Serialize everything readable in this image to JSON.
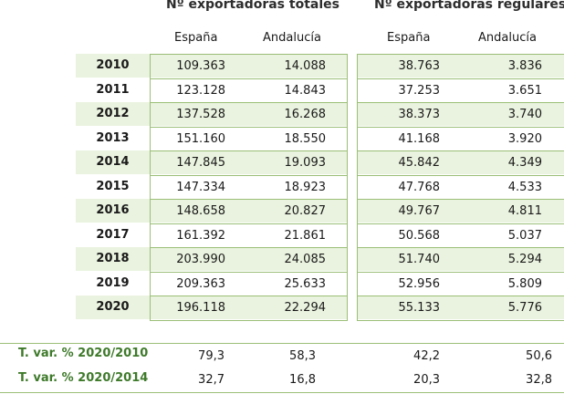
{
  "headers": {
    "totales": "Nº exportadoras totales",
    "regulares": "Nº exportadoras regulares",
    "sub_es_1": "España",
    "sub_an_1": "Andalucía",
    "sub_es_2": "España",
    "sub_an_2": "Andalucía"
  },
  "rows": [
    {
      "year": "2010",
      "t_es": "109.363",
      "t_an": "14.088",
      "r_es": "38.763",
      "r_an": "3.836"
    },
    {
      "year": "2011",
      "t_es": "123.128",
      "t_an": "14.843",
      "r_es": "37.253",
      "r_an": "3.651"
    },
    {
      "year": "2012",
      "t_es": "137.528",
      "t_an": "16.268",
      "r_es": "38.373",
      "r_an": "3.740"
    },
    {
      "year": "2013",
      "t_es": "151.160",
      "t_an": "18.550",
      "r_es": "41.168",
      "r_an": "3.920"
    },
    {
      "year": "2014",
      "t_es": "147.845",
      "t_an": "19.093",
      "r_es": "45.842",
      "r_an": "4.349"
    },
    {
      "year": "2015",
      "t_es": "147.334",
      "t_an": "18.923",
      "r_es": "47.768",
      "r_an": "4.533"
    },
    {
      "year": "2016",
      "t_es": "148.658",
      "t_an": "20.827",
      "r_es": "49.767",
      "r_an": "4.811"
    },
    {
      "year": "2017",
      "t_es": "161.392",
      "t_an": "21.861",
      "r_es": "50.568",
      "r_an": "5.037"
    },
    {
      "year": "2018",
      "t_es": "203.990",
      "t_an": "24.085",
      "r_es": "51.740",
      "r_an": "5.294"
    },
    {
      "year": "2019",
      "t_es": "209.363",
      "t_an": "25.633",
      "r_es": "52.956",
      "r_an": "5.809"
    },
    {
      "year": "2020",
      "t_es": "196.118",
      "t_an": "22.294",
      "r_es": "55.133",
      "r_an": "5.776"
    }
  ],
  "variations": [
    {
      "label": "T. var. % 2020/2010",
      "t_es": "79,3",
      "t_an": "58,3",
      "r_es": "42,2",
      "r_an": "50,6"
    },
    {
      "label": "T. var. % 2020/2014",
      "t_es": "32,7",
      "t_an": "16,8",
      "r_es": "20,3",
      "r_an": "32,8"
    }
  ],
  "colors": {
    "accent": "#9bbf77",
    "row_fill": "#eaf3df",
    "var_label": "#3e7a2a"
  }
}
